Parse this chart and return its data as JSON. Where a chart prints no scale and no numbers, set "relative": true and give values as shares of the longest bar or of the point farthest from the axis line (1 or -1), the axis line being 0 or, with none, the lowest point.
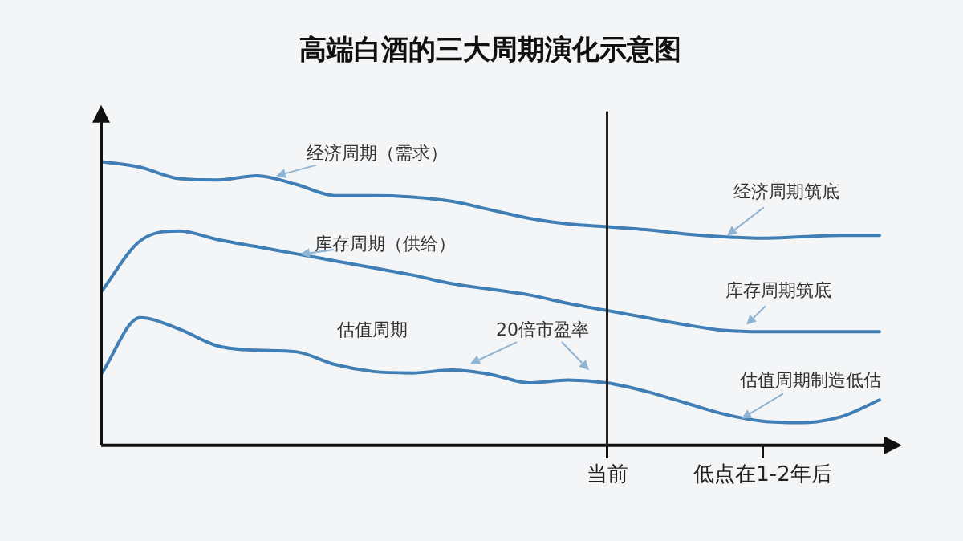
{
  "chart_data": {
    "type": "line",
    "title": "高端白酒的三大周期演化示意图",
    "relative": true,
    "categories": [
      null,
      null,
      null,
      null,
      null,
      null,
      null,
      null,
      null,
      null,
      null,
      null,
      null,
      "当前",
      null,
      null,
      null,
      "低点在1-2年后",
      null,
      null,
      null
    ],
    "ref_lines": [
      {
        "axis": "x",
        "value": "当前",
        "color": "#222222"
      }
    ],
    "legend": false,
    "grid": false,
    "marker": "none",
    "line_style": "solid",
    "series": [
      {
        "color": "#3f7fb5",
        "values": [
          1.0,
          0.98,
          0.94,
          0.935,
          0.95,
          0.92,
          0.88,
          0.88,
          0.875,
          0.86,
          0.83,
          0.8,
          0.78,
          0.77,
          0.76,
          0.745,
          0.735,
          0.73,
          0.735,
          0.74,
          0.74
        ]
      },
      {
        "color": "#3f7fb5",
        "values": [
          0.54,
          0.72,
          0.755,
          0.725,
          0.7,
          0.675,
          0.65,
          0.625,
          0.6,
          0.57,
          0.55,
          0.53,
          0.5,
          0.475,
          0.45,
          0.425,
          0.405,
          0.4,
          0.4,
          0.4,
          0.4
        ]
      },
      {
        "color": "#3f7fb5",
        "values": [
          0.25,
          0.45,
          0.41,
          0.35,
          0.335,
          0.33,
          0.285,
          0.26,
          0.255,
          0.265,
          0.25,
          0.22,
          0.23,
          0.22,
          0.19,
          0.15,
          0.11,
          0.085,
          0.08,
          0.1,
          0.16
        ]
      }
    ],
    "annotations": [
      "经济周期（需求）",
      "库存周期（供给）",
      "估值周期",
      "20倍市盈率",
      "经济周期筑底",
      "库存周期筑底",
      "估值周期制造低估"
    ]
  }
}
